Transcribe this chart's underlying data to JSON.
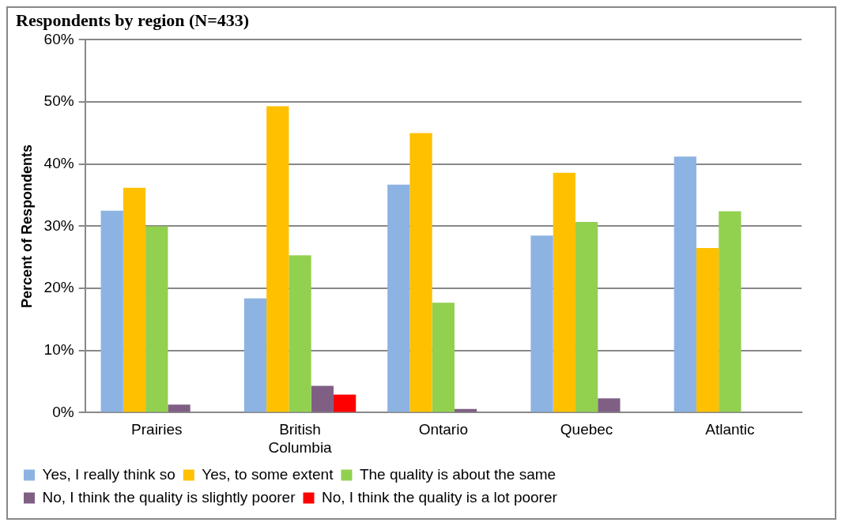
{
  "chart_data": {
    "type": "bar",
    "title": "Respondents by region (N=433)",
    "ylabel": "Percent of Respondents",
    "categories": [
      "Prairies",
      "British Columbia",
      "Ontario",
      "Quebec",
      "Atlantic"
    ],
    "series": [
      {
        "name": "Yes, I really think so",
        "color": "#8db3e2",
        "values": [
          32.5,
          18.4,
          36.7,
          28.5,
          41.2
        ]
      },
      {
        "name": "Yes, to some extent",
        "color": "#ffc000",
        "values": [
          36.2,
          49.3,
          45.0,
          38.6,
          26.5
        ]
      },
      {
        "name": "The quality is about the same",
        "color": "#92d050",
        "values": [
          30.0,
          25.3,
          17.7,
          30.7,
          32.4
        ]
      },
      {
        "name": "No, I think the quality is slightly poorer",
        "color": "#7f6084",
        "values": [
          1.3,
          4.3,
          0.6,
          2.3,
          0
        ]
      },
      {
        "name": "No, I think the quality is a lot poorer",
        "color": "#ff0000",
        "values": [
          0,
          2.9,
          0,
          0,
          0
        ]
      }
    ],
    "ylim": [
      0,
      60
    ],
    "yticks": [
      {
        "value": 0,
        "label": "0%"
      },
      {
        "value": 10,
        "label": "10%"
      },
      {
        "value": 20,
        "label": "20%"
      },
      {
        "value": 30,
        "label": "30%"
      },
      {
        "value": 40,
        "label": "40%"
      },
      {
        "value": 50,
        "label": "50%"
      },
      {
        "value": 60,
        "label": "60%"
      }
    ],
    "grid": "y",
    "legend": "bottom"
  }
}
